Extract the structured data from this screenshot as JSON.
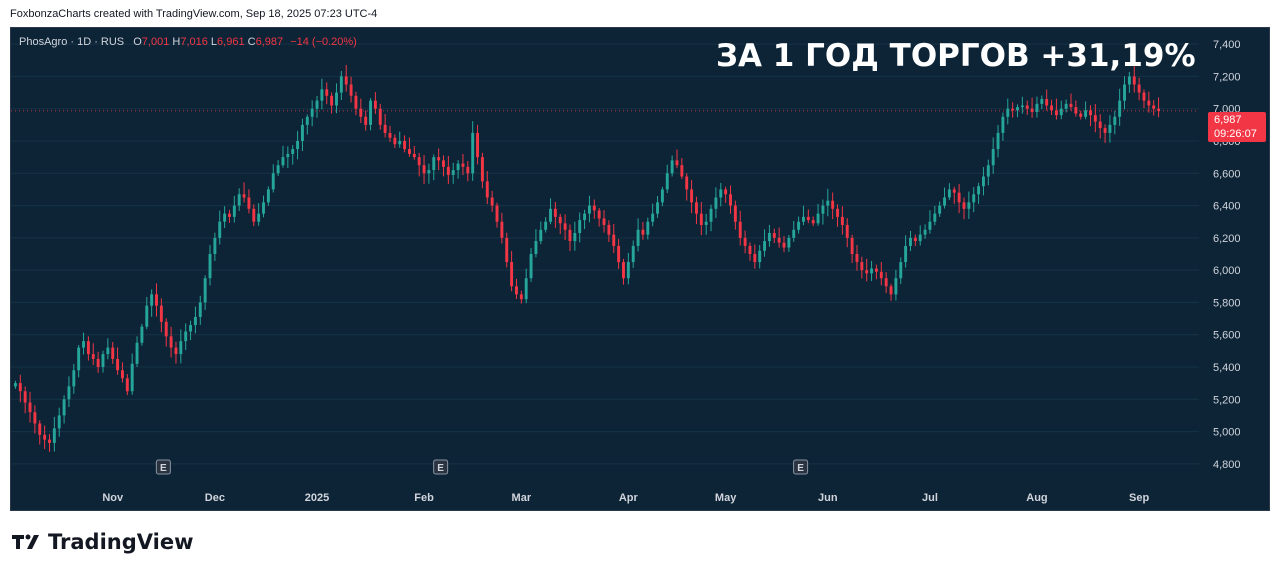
{
  "header": {
    "credit": "FoxbonzaCharts created with TradingView.com, Sep 18, 2025 07:23 UTC-4"
  },
  "legend": {
    "symbol": "PhosAgro · 1D · RUS",
    "open_label": "O",
    "open": "7,001",
    "high_label": "H",
    "high": "7,016",
    "low_label": "L",
    "low": "6,961",
    "close_label": "C",
    "close": "6,987",
    "change": "−14 (−0.20%)"
  },
  "headline": "ЗА 1 ГОД ТОРГОВ +31,19%",
  "price_tag": {
    "price": "6,987",
    "countdown": "09:26:07"
  },
  "footer": {
    "brand": "TradingView"
  },
  "colors": {
    "up": "#26a69a",
    "down": "#f23645",
    "background": "#0c2436"
  },
  "chart_data": {
    "type": "candlestick",
    "interval": "1D",
    "ylim": [
      4700,
      7500
    ],
    "y_ticks": [
      "4,800",
      "5,000",
      "5,200",
      "5,400",
      "5,600",
      "5,800",
      "6,000",
      "6,200",
      "6,400",
      "6,600",
      "6,800",
      "7,000",
      "7,200",
      "7,400"
    ],
    "y_tick_values": [
      4800,
      5000,
      5200,
      5400,
      5600,
      5800,
      6000,
      6200,
      6400,
      6600,
      6800,
      7000,
      7200,
      7400
    ],
    "x_ticks": [
      {
        "label": "Nov",
        "index": 20
      },
      {
        "label": "Dec",
        "index": 41
      },
      {
        "label": "2025",
        "index": 62
      },
      {
        "label": "Feb",
        "index": 84
      },
      {
        "label": "Mar",
        "index": 104
      },
      {
        "label": "Apr",
        "index": 126
      },
      {
        "label": "May",
        "index": 146
      },
      {
        "label": "Jun",
        "index": 167
      },
      {
        "label": "Jul",
        "index": 188
      },
      {
        "label": "Aug",
        "index": 210
      },
      {
        "label": "Sep",
        "index": 231
      }
    ],
    "earnings_markers": [
      {
        "label": "E",
        "index": 30
      },
      {
        "label": "E",
        "index": 87
      },
      {
        "label": "E",
        "index": 161
      }
    ],
    "last_price": 6987,
    "closes": [
      5300,
      5250,
      5180,
      5120,
      5050,
      4980,
      4950,
      4930,
      5020,
      5100,
      5200,
      5280,
      5380,
      5520,
      5560,
      5480,
      5450,
      5400,
      5480,
      5520,
      5450,
      5380,
      5330,
      5250,
      5420,
      5550,
      5650,
      5780,
      5850,
      5780,
      5680,
      5590,
      5520,
      5480,
      5560,
      5620,
      5660,
      5710,
      5800,
      5950,
      6100,
      6200,
      6300,
      6350,
      6330,
      6400,
      6470,
      6450,
      6380,
      6300,
      6350,
      6420,
      6500,
      6600,
      6650,
      6700,
      6720,
      6750,
      6800,
      6900,
      6950,
      7000,
      7050,
      7120,
      7080,
      7020,
      7100,
      7200,
      7150,
      7080,
      7000,
      6950,
      6900,
      7050,
      7000,
      6900,
      6850,
      6820,
      6780,
      6800,
      6750,
      6720,
      6700,
      6650,
      6600,
      6620,
      6700,
      6680,
      6640,
      6590,
      6620,
      6660,
      6640,
      6600,
      6850,
      6700,
      6550,
      6450,
      6400,
      6300,
      6200,
      6050,
      5900,
      5850,
      5820,
      5950,
      6100,
      6180,
      6250,
      6300,
      6380,
      6330,
      6290,
      6250,
      6180,
      6230,
      6310,
      6350,
      6400,
      6370,
      6320,
      6280,
      6220,
      6150,
      6050,
      5950,
      6050,
      6150,
      6250,
      6220,
      6300,
      6350,
      6420,
      6500,
      6600,
      6680,
      6650,
      6580,
      6500,
      6420,
      6350,
      6280,
      6300,
      6380,
      6450,
      6500,
      6470,
      6400,
      6300,
      6200,
      6150,
      6100,
      6050,
      6120,
      6180,
      6230,
      6200,
      6170,
      6140,
      6200,
      6250,
      6300,
      6330,
      6310,
      6290,
      6350,
      6400,
      6430,
      6380,
      6330,
      6280,
      6200,
      6100,
      6050,
      6000,
      5980,
      6010,
      5990,
      5950,
      5900,
      5850,
      5950,
      6050,
      6150,
      6200,
      6180,
      6220,
      6250,
      6300,
      6350,
      6400,
      6450,
      6500,
      6480,
      6420,
      6380,
      6420,
      6470,
      6520,
      6580,
      6650,
      6750,
      6850,
      6950,
      7000,
      6990,
      7010,
      7020,
      7000,
      6980,
      7030,
      7060,
      7020,
      6990,
      6960,
      7000,
      7030,
      7010,
      6970,
      6950,
      6990,
      6960,
      6920,
      6880,
      6850,
      6900,
      6950,
      7050,
      7150,
      7200,
      7150,
      7100,
      7050,
      7020,
      7000,
      6987
    ]
  }
}
